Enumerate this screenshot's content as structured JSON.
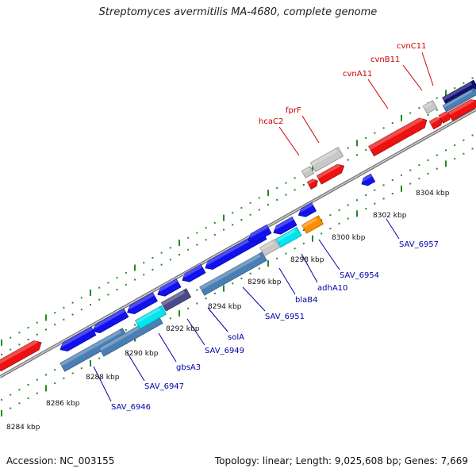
{
  "title": "Streptomyces avermitilis MA-4680, complete genome",
  "footer": {
    "accession": "Accession: NC_003155",
    "summary": "Topology: linear; Length: 9,025,608 bp; Genes: 7,669"
  },
  "colors": {
    "forward_gene": "#ee1111",
    "reverse_gene": "#1111ee",
    "cds_steel": "#4a7fb5",
    "cds_cyan": "#00e5ee",
    "cds_purple": "#4a4a8a",
    "cds_grey": "#c8c8c8",
    "cds_orange": "#ff8c00",
    "cds_navy": "#101070",
    "tick_green": "#228b22",
    "label_red": "#cc0000",
    "label_blue": "#0000aa"
  },
  "scale": {
    "unit": "kbp",
    "tick_labels": [
      "8284 kbp",
      "8286 kbp",
      "8288 kbp",
      "8290 kbp",
      "8292 kbp",
      "8294 kbp",
      "8296 kbp",
      "8298 kbp",
      "8300 kbp",
      "8302 kbp",
      "8304 kbp"
    ]
  },
  "gene_labels": {
    "forward": [
      "hcaC2",
      "fprF",
      "cvnA11",
      "cvnB11",
      "cvnC11"
    ],
    "reverse": [
      "SAV_6946",
      "SAV_6947",
      "gbsA3",
      "SAV_6949",
      "solA",
      "SAV_6951",
      "blaB4",
      "adhA10",
      "SAV_6954",
      "SAV_6957"
    ]
  }
}
